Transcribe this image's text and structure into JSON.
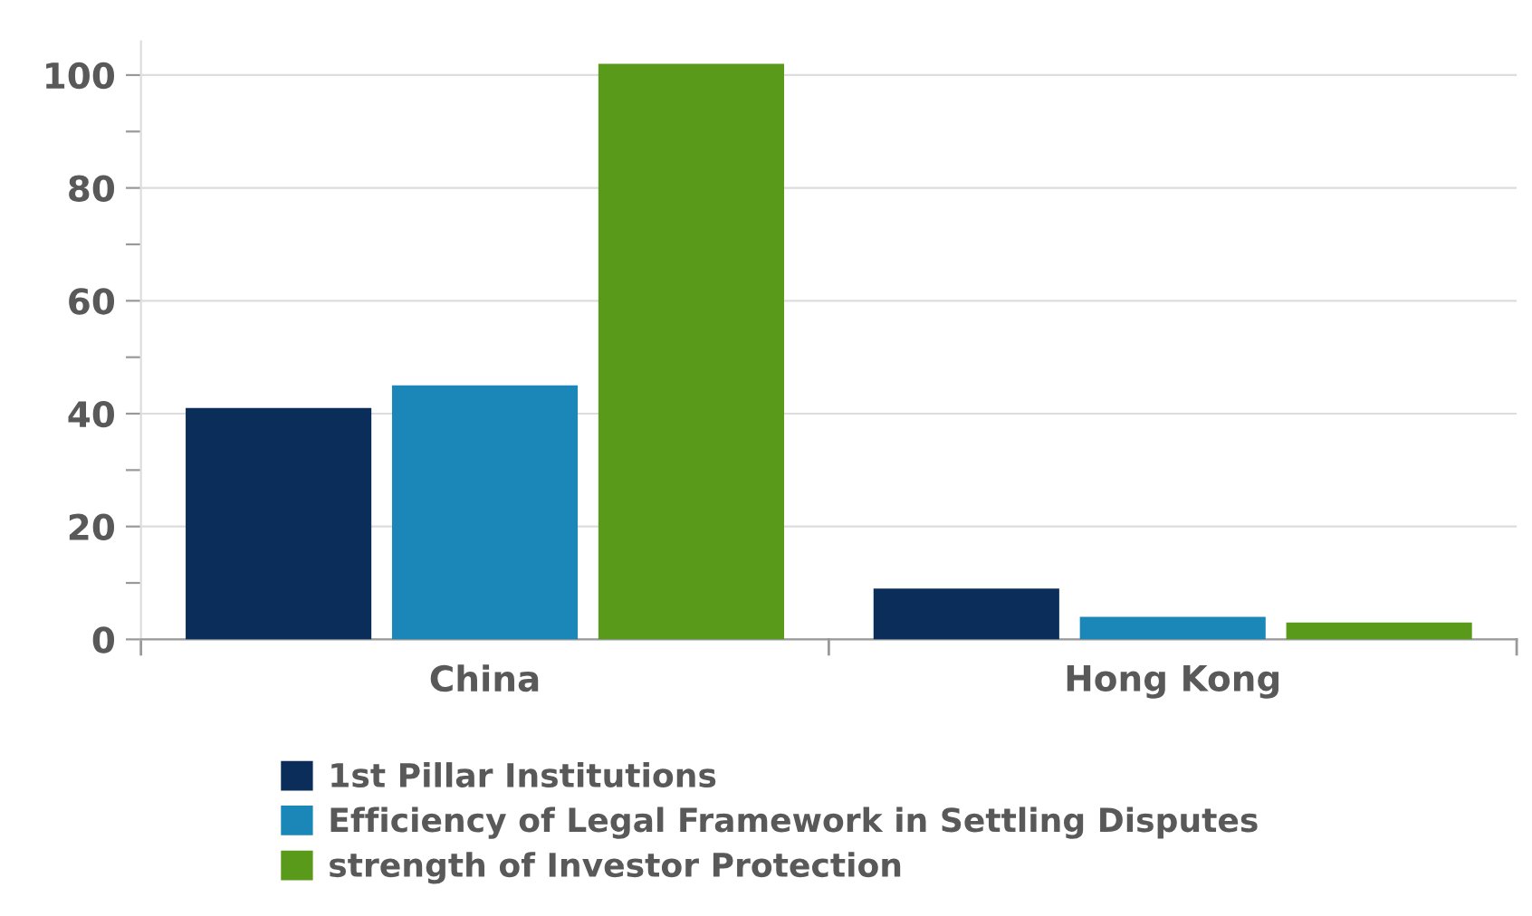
{
  "chart_data": {
    "type": "bar",
    "categories": [
      "China",
      "Hong Kong"
    ],
    "series": [
      {
        "name": "1st Pillar Institutions",
        "color": "#0a2d5a",
        "values": [
          41,
          9
        ]
      },
      {
        "name": "Efficiency of Legal Framework in Settling Disputes",
        "color": "#1a87b8",
        "values": [
          45,
          4
        ]
      },
      {
        "name": "strength of Investor Protection",
        "color": "#5a9a1a",
        "values": [
          102,
          3
        ]
      }
    ],
    "ylim": [
      0,
      106
    ],
    "yticks": [
      0,
      {
        "value": 10,
        "label": null
      },
      20,
      {
        "value": 30,
        "label": null
      },
      40,
      {
        "value": 50,
        "label": null
      },
      60,
      {
        "value": 70,
        "label": null
      },
      80,
      {
        "value": 90,
        "label": null
      },
      100
    ],
    "grid": "y",
    "legend": "bottom"
  }
}
